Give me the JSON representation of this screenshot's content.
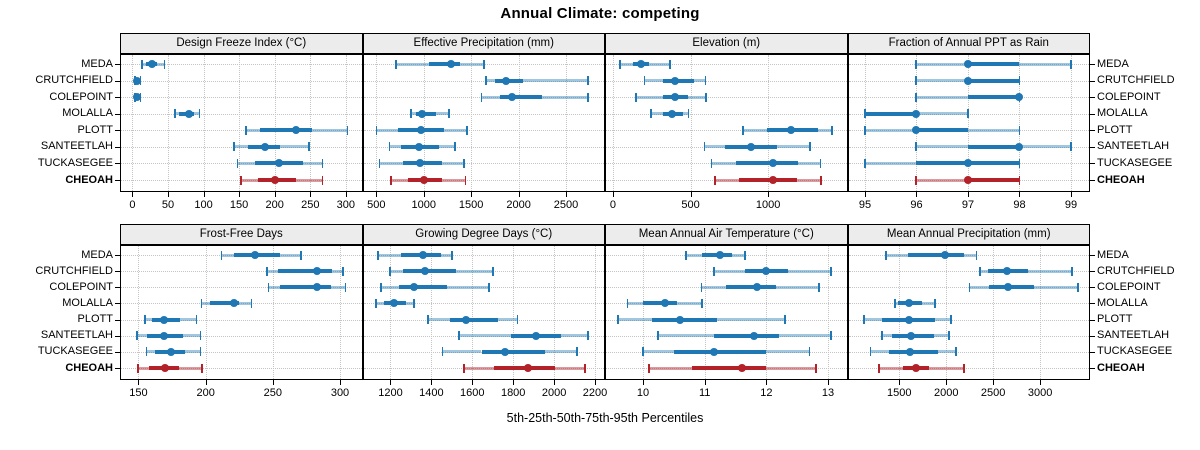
{
  "title": "Annual Climate: competing",
  "caption": "5th-25th-50th-75th-95th Percentiles",
  "colors": {
    "series": "#1f77b4",
    "series_light": "rgba(31,119,180,0.42)",
    "highlight": "#b22228",
    "highlight_light": "rgba(178,34,40,0.45)",
    "grid": "#c4c4c4",
    "header_bg": "#ececec",
    "border": "#000000"
  },
  "chart_data": {
    "type": "dotplot",
    "subtype": "trellis-percentile-intervals",
    "percentile_labels": [
      "5th",
      "25th",
      "50th",
      "75th",
      "95th"
    ],
    "sites": [
      "MEDA",
      "CRUTCHFIELD",
      "COLEPOINT",
      "MOLALLA",
      "PLOTT",
      "SANTEETLAH",
      "TUCKASEGEE",
      "CHEOAH"
    ],
    "highlight_site": "CHEOAH",
    "legend_position": "none",
    "grid": "dotted",
    "panels": [
      {
        "title": "Design Freeze Index (°C)",
        "ticks": [
          0,
          50,
          100,
          150,
          200,
          250,
          300
        ],
        "range": [
          -16,
          322
        ],
        "values": [
          [
            14,
            19,
            28,
            34,
            45
          ],
          [
            4,
            6,
            7,
            9,
            11
          ],
          [
            4,
            6,
            7,
            9,
            11
          ],
          [
            60,
            66,
            79,
            86,
            94
          ],
          [
            160,
            180,
            230,
            253,
            302
          ],
          [
            143,
            162,
            186,
            208,
            248
          ],
          [
            148,
            172,
            206,
            240,
            267
          ],
          [
            153,
            177,
            200,
            230,
            267
          ]
        ]
      },
      {
        "title": "Effective Precipitation (mm)",
        "ticks": [
          500,
          1000,
          1500,
          2000,
          2500
        ],
        "range": [
          365,
          2900
        ],
        "values": [
          [
            710,
            1060,
            1290,
            1380,
            1630
          ],
          [
            1660,
            1750,
            1870,
            2045,
            2730
          ],
          [
            1610,
            1800,
            1925,
            2250,
            2730
          ],
          [
            865,
            915,
            985,
            1125,
            1265
          ],
          [
            505,
            725,
            975,
            1210,
            1455
          ],
          [
            640,
            760,
            945,
            1160,
            1325
          ],
          [
            535,
            780,
            960,
            1195,
            1420
          ],
          [
            655,
            830,
            1000,
            1195,
            1440
          ]
        ]
      },
      {
        "title": "Elevation (m)",
        "ticks": [
          0,
          500,
          1000
        ],
        "range": [
          -45,
          1505
        ],
        "values": [
          [
            45,
            130,
            183,
            235,
            365
          ],
          [
            205,
            320,
            397,
            520,
            595
          ],
          [
            150,
            320,
            397,
            485,
            600
          ],
          [
            245,
            320,
            382,
            450,
            485
          ],
          [
            840,
            990,
            1150,
            1320,
            1410
          ],
          [
            590,
            720,
            890,
            1055,
            1270
          ],
          [
            635,
            795,
            1030,
            1195,
            1335
          ],
          [
            660,
            815,
            1030,
            1185,
            1340
          ]
        ]
      },
      {
        "title": "Fraction of Annual PPT as Rain",
        "ticks": [
          95,
          96,
          97,
          98,
          99
        ],
        "range": [
          94.68,
          99.35
        ],
        "values": [
          [
            96,
            97,
            97,
            98,
            99
          ],
          [
            96,
            97,
            97,
            98,
            98
          ],
          [
            96,
            97,
            98,
            98,
            98
          ],
          [
            95,
            95,
            96,
            96,
            97
          ],
          [
            95,
            96,
            96,
            97,
            98
          ],
          [
            96,
            97,
            98,
            98,
            99
          ],
          [
            95,
            96,
            97,
            98,
            98
          ],
          [
            96,
            97,
            97,
            98,
            98
          ]
        ]
      },
      {
        "title": "Frost-Free Days",
        "ticks": [
          150,
          200,
          250,
          300
        ],
        "range": [
          137,
          316
        ],
        "values": [
          [
            212,
            221,
            237,
            255,
            271
          ],
          [
            246,
            254,
            283,
            294,
            302
          ],
          [
            247,
            255,
            283,
            293,
            304
          ],
          [
            197,
            203,
            221,
            225,
            234
          ],
          [
            155,
            160,
            169,
            181,
            193
          ],
          [
            149,
            156,
            169,
            183,
            196
          ],
          [
            156,
            162,
            174,
            185,
            196
          ],
          [
            150,
            158,
            170,
            180,
            197
          ]
        ]
      },
      {
        "title": "Growing Degree Days (°C)",
        "ticks": [
          1200,
          1400,
          1600,
          1800,
          2000,
          2200
        ],
        "range": [
          1068,
          2244
        ],
        "values": [
          [
            1140,
            1250,
            1360,
            1445,
            1500
          ],
          [
            1200,
            1260,
            1370,
            1520,
            1700
          ],
          [
            1155,
            1240,
            1315,
            1475,
            1680
          ],
          [
            1130,
            1170,
            1215,
            1275,
            1315
          ],
          [
            1385,
            1490,
            1570,
            1725,
            1820
          ],
          [
            1535,
            1790,
            1910,
            2035,
            2165
          ],
          [
            1455,
            1645,
            1760,
            1955,
            2110
          ],
          [
            1560,
            1705,
            1870,
            2005,
            2150
          ]
        ]
      },
      {
        "title": "Mean Annual Air Temperature (°C)",
        "ticks": [
          10,
          11,
          12,
          13
        ],
        "range": [
          9.4,
          13.3
        ],
        "values": [
          [
            10.7,
            10.95,
            11.25,
            11.45,
            11.65
          ],
          [
            11.15,
            11.65,
            12.0,
            12.35,
            13.05
          ],
          [
            10.95,
            11.35,
            11.85,
            12.15,
            12.85
          ],
          [
            9.75,
            10.0,
            10.35,
            10.55,
            10.95
          ],
          [
            9.6,
            10.15,
            10.6,
            11.2,
            12.3
          ],
          [
            10.25,
            11.15,
            11.8,
            12.2,
            13.05
          ],
          [
            10.0,
            10.5,
            11.15,
            12.0,
            12.7
          ],
          [
            10.1,
            10.8,
            11.6,
            12.0,
            12.8
          ]
        ]
      },
      {
        "title": "Mean Annual Precipitation (mm)",
        "ticks": [
          1500,
          2000,
          2500,
          3000
        ],
        "range": [
          960,
          3520
        ],
        "values": [
          [
            1360,
            1590,
            1990,
            2190,
            2320
          ],
          [
            2360,
            2450,
            2650,
            2870,
            3340
          ],
          [
            2250,
            2460,
            2660,
            2930,
            3400
          ],
          [
            1455,
            1490,
            1600,
            1745,
            1880
          ],
          [
            1125,
            1320,
            1605,
            1880,
            2050
          ],
          [
            1320,
            1425,
            1620,
            1865,
            2030
          ],
          [
            1195,
            1395,
            1610,
            1915,
            2100
          ],
          [
            1285,
            1535,
            1680,
            1815,
            2190
          ]
        ]
      }
    ]
  }
}
